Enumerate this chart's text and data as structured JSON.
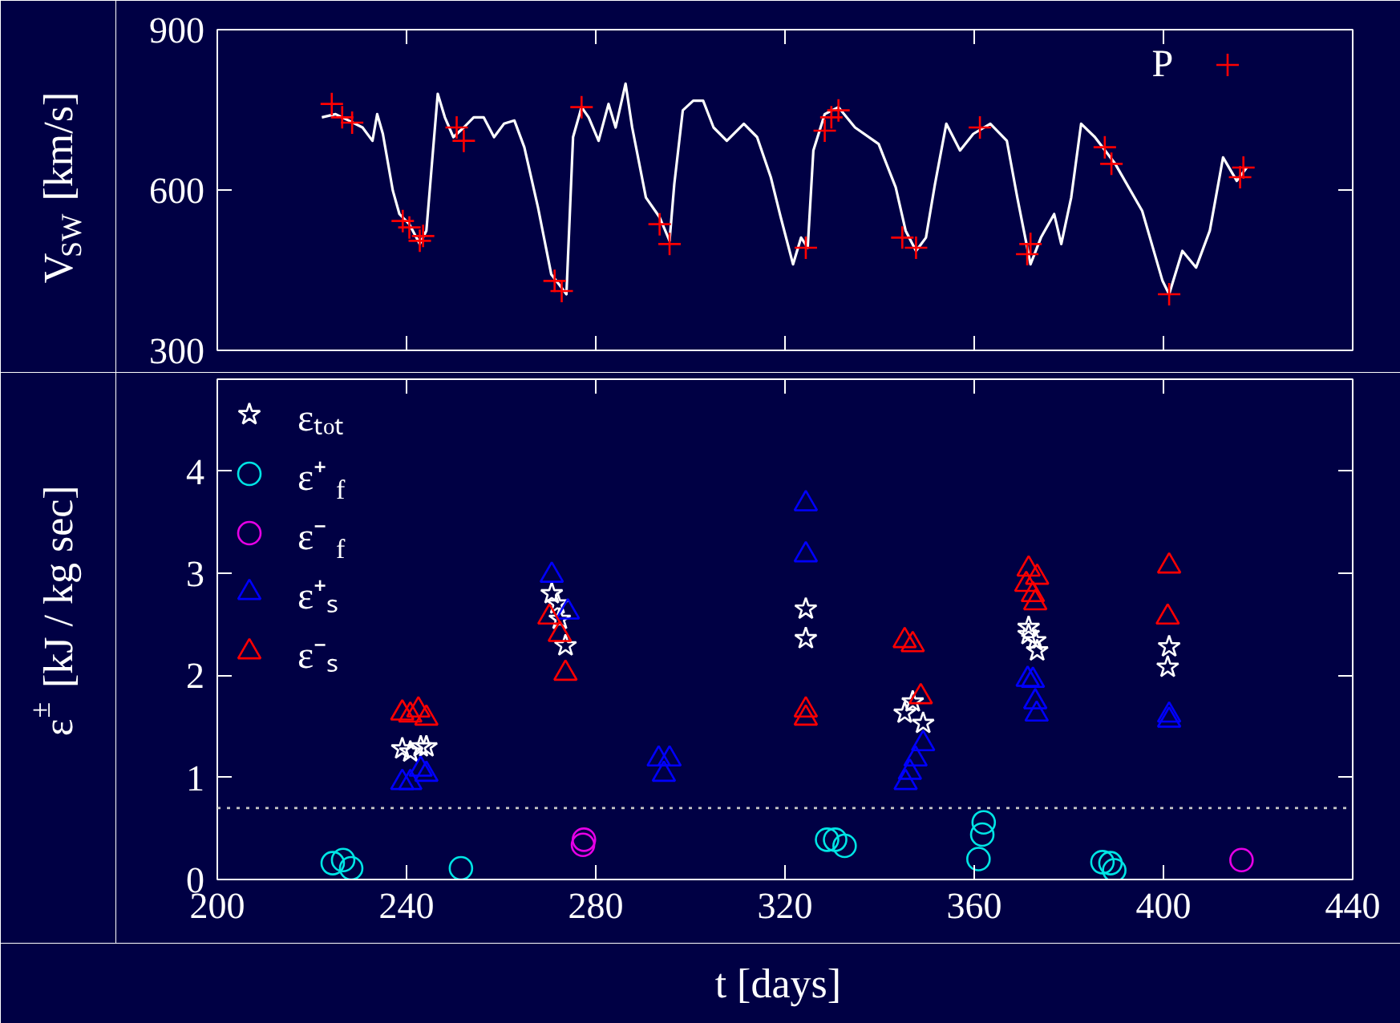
{
  "chart_data": [
    {
      "type": "line",
      "ylabel": "V$_{SW}$ [km/s]",
      "xlim": [
        200,
        440
      ],
      "xticks": [
        {
          "value": 240,
          "label": null
        },
        {
          "value": 280,
          "label": null
        },
        {
          "value": 320,
          "label": null
        },
        {
          "value": 360,
          "label": null
        },
        {
          "value": 400,
          "label": null
        }
      ],
      "ylim": [
        300,
        900
      ],
      "yticks": [
        300,
        600,
        900
      ],
      "tick_labels": "y",
      "legend": "top right",
      "series": [
        {
          "type": "line",
          "color": "#ffffff",
          "x": [
            222.1,
            225,
            227.8,
            230.7,
            232.8,
            233.8,
            235,
            237.1,
            238.5,
            240.6,
            242.8,
            244.2,
            245.6,
            246.6,
            248.1,
            249.9,
            252.1,
            254.2,
            256.3,
            258.5,
            260.6,
            262.8,
            264.9,
            267.8,
            270.6,
            272.8,
            273.8,
            275.2,
            277,
            278.5,
            280.6,
            282.7,
            284.2,
            286.3,
            287.7,
            290.6,
            293.5,
            295.6,
            296.6,
            298.4,
            300.6,
            302.7,
            304.9,
            307.7,
            311.3,
            314.1,
            317,
            319.1,
            321.7,
            323.4,
            324.8,
            326,
            328.4,
            331.3,
            334.8,
            339.8,
            343.4,
            345.5,
            347.7,
            349.8,
            351.7,
            354.1,
            357,
            359.8,
            363.4,
            366.9,
            369.1,
            371.9,
            374.1,
            376.9,
            378.4,
            380.5,
            382.6,
            385.5,
            389.8,
            395.5,
            399.8,
            401.2,
            404,
            406.9,
            409.8,
            412.6,
            415.5,
            417.6
          ],
          "values": [
            736,
            742,
            730,
            717,
            692,
            742,
            705,
            599,
            555,
            536,
            499,
            524,
            674,
            780,
            736,
            699,
            717,
            736,
            736,
            699,
            724,
            730,
            680,
            567,
            442,
            417,
            405,
            699,
            755,
            736,
            692,
            761,
            717,
            799,
            717,
            586,
            549,
            505,
            611,
            749,
            767,
            767,
            717,
            692,
            724,
            699,
            624,
            549,
            461,
            511,
            492,
            674,
            742,
            755,
            717,
            686,
            605,
            524,
            486,
            511,
            611,
            724,
            674,
            705,
            724,
            692,
            586,
            461,
            511,
            555,
            499,
            586,
            724,
            699,
            649,
            561,
            430,
            405,
            486,
            455,
            524,
            661,
            617,
            642
          ]
        },
        {
          "name": "P",
          "type": "scatter",
          "marker": "cross",
          "color": "#ff0000",
          "x": [
            224.2,
            226.4,
            228.5,
            239.2,
            240.6,
            242.8,
            243.5,
            250.6,
            252.1,
            271.3,
            272.8,
            277,
            293.5,
            295.6,
            324.4,
            328.4,
            329.8,
            331.3,
            344.8,
            347.7,
            361.2,
            371.2,
            371.9,
            387.6,
            389,
            401.2,
            416.2,
            416.9
          ],
          "values": [
            761,
            736,
            726,
            542,
            530,
            505,
            514,
            717,
            692,
            430,
            411,
            755,
            536,
            499,
            492,
            711,
            736,
            749,
            511,
            492,
            717,
            480,
            499,
            680,
            649,
            405,
            624,
            642
          ]
        }
      ]
    },
    {
      "type": "scatter",
      "xlabel": "t [days]",
      "ylabel": "ε$^{±}$ [kJ / kg sec]",
      "xlim": [
        200,
        440
      ],
      "xticks": [
        200,
        240,
        280,
        320,
        360,
        400,
        440
      ],
      "ylim": [
        0,
        4.9
      ],
      "yticks": [
        0,
        1,
        2,
        3,
        4
      ],
      "legend": "top left",
      "ref_lines": [
        {
          "axis": "y",
          "value": 0.7,
          "color": "#c8c8c8",
          "line_style": "dotted"
        }
      ],
      "series": [
        {
          "name": "εₜₒₜ",
          "marker": "star",
          "color": "#ffffff",
          "x": [
            239.1,
            240.8,
            243,
            244.2,
            270.7,
            271.9,
            272.4,
            273.6,
            324.4,
            324.4,
            345.3,
            347,
            349.2,
            371.5,
            371.5,
            372.9,
            373.3,
            401.2,
            400.9
          ],
          "values": [
            1.28,
            1.25,
            1.3,
            1.3,
            2.8,
            2.7,
            2.55,
            2.29,
            2.65,
            2.36,
            1.63,
            1.74,
            1.53,
            2.47,
            2.4,
            2.34,
            2.24,
            2.28,
            2.08
          ]
        },
        {
          "name": "ε⁺$_{f}$",
          "marker": "circle",
          "color": "#00e5e5",
          "x": [
            224.4,
            226.6,
            228.3,
            251.5,
            328.9,
            330.6,
            332.6,
            362,
            361.7,
            360.9,
            387.1,
            388.8,
            389.6
          ],
          "values": [
            0.16,
            0.19,
            0.11,
            0.11,
            0.39,
            0.39,
            0.33,
            0.56,
            0.44,
            0.2,
            0.17,
            0.16,
            0.09
          ]
        },
        {
          "name": "ε⁻$_{f}$",
          "marker": "circle",
          "color": "#e600e6",
          "x": [
            277.5,
            277.3,
            416.5
          ],
          "values": [
            0.39,
            0.34,
            0.19
          ]
        },
        {
          "name": "ε⁺ₛ",
          "marker": "triangle",
          "color": "#0000ff",
          "x": [
            239.1,
            240.8,
            243,
            244.2,
            270.7,
            274.1,
            293.3,
            295.6,
            294.4,
            324.4,
            324.4,
            349.2,
            347.6,
            346.4,
            345.5,
            371.3,
            372.4,
            372.9,
            373.2,
            401.2,
            401.2
          ],
          "values": [
            0.95,
            0.95,
            1.08,
            1.03,
            2.98,
            2.62,
            1.18,
            1.18,
            1.03,
            3.68,
            3.18,
            1.33,
            1.18,
            1.05,
            0.95,
            1.96,
            1.95,
            1.74,
            1.62,
            1.61,
            1.56
          ]
        },
        {
          "name": "ε⁻ₛ",
          "marker": "triangle",
          "color": "#ff0000",
          "x": [
            239.1,
            240.8,
            242.5,
            244.2,
            270.2,
            272.4,
            273.6,
            324.4,
            324.4,
            345.3,
            347,
            348.7,
            371.5,
            373.3,
            371,
            372.4,
            372.9,
            401.2,
            400.9
          ],
          "values": [
            1.63,
            1.61,
            1.66,
            1.58,
            2.57,
            2.4,
            2.02,
            1.66,
            1.58,
            2.34,
            2.3,
            1.79,
            3.04,
            2.96,
            2.89,
            2.79,
            2.71,
            3.07,
            2.57
          ]
        }
      ]
    }
  ]
}
